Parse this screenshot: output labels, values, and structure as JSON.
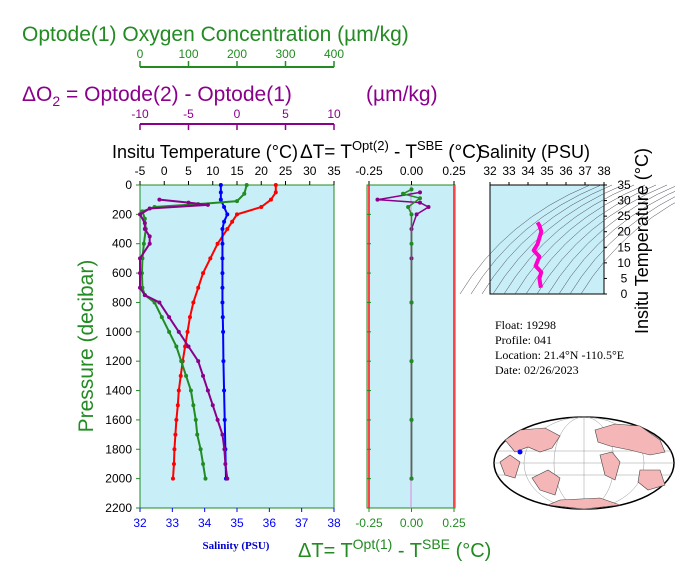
{
  "header": {
    "oxygen_title": "Optode(1) Oxygen Concentration (µm/kg)",
    "oxygen_ticks": [
      "0",
      "100",
      "200",
      "300",
      "400"
    ],
    "delta_o2_title": "ΔO",
    "delta_o2_sub": "2",
    "delta_o2_rest": " = Optode(2) - Optode(1)",
    "delta_o2_units": "(µm/kg)",
    "delta_ticks": [
      "-10",
      "-5",
      "0",
      "5",
      "10"
    ]
  },
  "panel_main": {
    "temp_title": "Insitu Temperature (°C)",
    "temp_ticks": [
      "-5",
      "0",
      "5",
      "10",
      "15",
      "20",
      "25",
      "30",
      "35"
    ],
    "y_label": "Pressure (decibar)",
    "y_ticks": [
      "0",
      "200",
      "400",
      "600",
      "800",
      "1000",
      "1200",
      "1400",
      "1600",
      "1800",
      "2000",
      "2200"
    ],
    "sal_ticks": [
      "32",
      "33",
      "34",
      "35",
      "36",
      "37",
      "38"
    ],
    "sal_label": "Salinity (PSU)"
  },
  "panel_delta": {
    "top_title_prefix": "ΔT= T",
    "top_title_sup1": "Opt(2)",
    "top_title_mid": " - T",
    "top_title_sup2": "SBE",
    "top_title_suffix": " (°C)",
    "top_ticks": [
      "-0.25",
      "0.00",
      "0.25"
    ],
    "bottom_title_prefix": "ΔT= T",
    "bottom_title_sup1": "Opt(1)",
    "bottom_title_mid": " - T",
    "bottom_title_sup2": "SBE",
    "bottom_title_suffix": " (°C)",
    "bottom_ticks": [
      "-0.25",
      "0.00",
      "0.25"
    ]
  },
  "panel_ts": {
    "title": "Salinity (PSU)",
    "x_ticks": [
      "32",
      "33",
      "34",
      "35",
      "36",
      "37",
      "38"
    ],
    "y_ticks": [
      "35",
      "30",
      "25",
      "20",
      "15",
      "10",
      "5",
      "0"
    ],
    "y_label": "Insitu Temperature (°C)"
  },
  "info": {
    "float": "Float:  19298",
    "profile": "Profile:  041",
    "location": "Location:  21.4°N  -110.5°E",
    "date": "Date:  02/26/2023"
  },
  "colors": {
    "panel_bg": "#c8eef8",
    "temperature": "#ff0000",
    "salinity": "#0000ff",
    "oxygen": "#228b22",
    "delta_o2": "#8b008b",
    "ts_curve": "#ff00cc"
  },
  "chart_data": [
    {
      "type": "line",
      "name": "main-profile",
      "y_axis": "Pressure (decibar)",
      "ylim": [
        2200,
        0
      ],
      "series": [
        {
          "name": "Insitu Temperature",
          "axis": "temperature",
          "xlim": [
            -5,
            35
          ],
          "points": [
            [
              23,
              0
            ],
            [
              23,
              50
            ],
            [
              22,
              100
            ],
            [
              20,
              150
            ],
            [
              15,
              200
            ],
            [
              14,
              250
            ],
            [
              13,
              300
            ],
            [
              11,
              400
            ],
            [
              9.5,
              500
            ],
            [
              8,
              600
            ],
            [
              7,
              700
            ],
            [
              6,
              800
            ],
            [
              5.3,
              900
            ],
            [
              4.8,
              1000
            ],
            [
              4.3,
              1100
            ],
            [
              3.8,
              1200
            ],
            [
              3.4,
              1300
            ],
            [
              3.0,
              1400
            ],
            [
              2.8,
              1500
            ],
            [
              2.5,
              1600
            ],
            [
              2.3,
              1700
            ],
            [
              2.1,
              1800
            ],
            [
              2.0,
              1900
            ],
            [
              1.8,
              2000
            ]
          ]
        },
        {
          "name": "Salinity",
          "axis": "salinity",
          "xlim": [
            32,
            38
          ],
          "points": [
            [
              34.5,
              0
            ],
            [
              34.5,
              50
            ],
            [
              34.5,
              100
            ],
            [
              34.6,
              150
            ],
            [
              34.7,
              200
            ],
            [
              34.6,
              250
            ],
            [
              34.55,
              300
            ],
            [
              34.55,
              400
            ],
            [
              34.55,
              500
            ],
            [
              34.55,
              600
            ],
            [
              34.55,
              700
            ],
            [
              34.55,
              800
            ],
            [
              34.56,
              900
            ],
            [
              34.57,
              1000
            ],
            [
              34.58,
              1200
            ],
            [
              34.6,
              1400
            ],
            [
              34.62,
              1600
            ],
            [
              34.64,
              1800
            ],
            [
              34.66,
              2000
            ]
          ]
        },
        {
          "name": "Optode(1) Oxygen Concentration",
          "axis": "oxygen",
          "xlim": [
            0,
            400
          ],
          "points": [
            [
              220,
              0
            ],
            [
              215,
              60
            ],
            [
              200,
              110
            ],
            [
              120,
              130
            ],
            [
              30,
              150
            ],
            [
              5,
              180
            ],
            [
              10,
              230
            ],
            [
              12,
              300
            ],
            [
              8,
              400
            ],
            [
              5,
              500
            ],
            [
              4,
              600
            ],
            [
              5,
              700
            ],
            [
              10,
              750
            ],
            [
              30,
              800
            ],
            [
              45,
              900
            ],
            [
              60,
              1000
            ],
            [
              75,
              1100
            ],
            [
              85,
              1200
            ],
            [
              95,
              1300
            ],
            [
              105,
              1400
            ],
            [
              110,
              1500
            ],
            [
              115,
              1600
            ],
            [
              118,
              1700
            ],
            [
              125,
              1800
            ],
            [
              130,
              1900
            ],
            [
              135,
              2000
            ]
          ]
        },
        {
          "name": "ΔO2",
          "axis": "delta",
          "xlim": [
            -10,
            10
          ],
          "points": [
            [
              -8,
              100
            ],
            [
              -5,
              120
            ],
            [
              -3,
              135
            ],
            [
              -9,
              160
            ],
            [
              -10,
              200
            ],
            [
              -9.5,
              260
            ],
            [
              -9.5,
              300
            ],
            [
              -9,
              350
            ],
            [
              -9,
              400
            ],
            [
              -10,
              500
            ],
            [
              -10,
              600
            ],
            [
              -10,
              700
            ],
            [
              -9.5,
              750
            ],
            [
              -8,
              800
            ],
            [
              -7,
              900
            ],
            [
              -6,
              1000
            ],
            [
              -5,
              1100
            ],
            [
              -4,
              1200
            ],
            [
              -3.5,
              1300
            ],
            [
              -3,
              1400
            ],
            [
              -2.5,
              1500
            ],
            [
              -2,
              1600
            ],
            [
              -1.5,
              1700
            ],
            [
              -1.3,
              1800
            ],
            [
              -1.2,
              1900
            ],
            [
              -1.0,
              2000
            ]
          ]
        }
      ]
    },
    {
      "type": "scatter",
      "name": "temperature-differences",
      "y_axis": "Pressure (decibar)",
      "xlim": [
        -0.25,
        0.25
      ],
      "ylim": [
        2200,
        0
      ],
      "series": [
        {
          "name": "ΔT= TOpt(2) - TSBE",
          "points": [
            [
              0.05,
              50
            ],
            [
              -0.2,
              100
            ],
            [
              0.05,
              120
            ],
            [
              0.1,
              150
            ],
            [
              0.03,
              200
            ],
            [
              0.0,
              300
            ],
            [
              0.0,
              500
            ],
            [
              0.0,
              800
            ],
            [
              0.0,
              1200
            ],
            [
              0.0,
              1600
            ],
            [
              0.0,
              2000
            ]
          ]
        },
        {
          "name": "ΔT= TOpt(1) - TSBE",
          "points": [
            [
              0.0,
              30
            ],
            [
              -0.05,
              60
            ],
            [
              0.05,
              90
            ],
            [
              -0.02,
              150
            ],
            [
              0.0,
              200
            ],
            [
              0.0,
              400
            ],
            [
              0.0,
              800
            ],
            [
              0.0,
              1200
            ],
            [
              0.0,
              1600
            ],
            [
              0.0,
              2000
            ]
          ]
        }
      ]
    },
    {
      "type": "line",
      "name": "ts-diagram",
      "xlabel": "Salinity (PSU)",
      "ylabel": "Insitu Temperature (°C)",
      "xlim": [
        32,
        38
      ],
      "ylim": [
        0,
        35
      ],
      "series": [
        {
          "name": "T-S",
          "points": [
            [
              34.5,
              23
            ],
            [
              34.6,
              22
            ],
            [
              34.7,
              20
            ],
            [
              34.5,
              16
            ],
            [
              34.3,
              14
            ],
            [
              34.6,
              12
            ],
            [
              34.4,
              9
            ],
            [
              34.7,
              7
            ],
            [
              34.6,
              5
            ],
            [
              34.65,
              3
            ],
            [
              34.68,
              2
            ]
          ]
        }
      ]
    }
  ]
}
